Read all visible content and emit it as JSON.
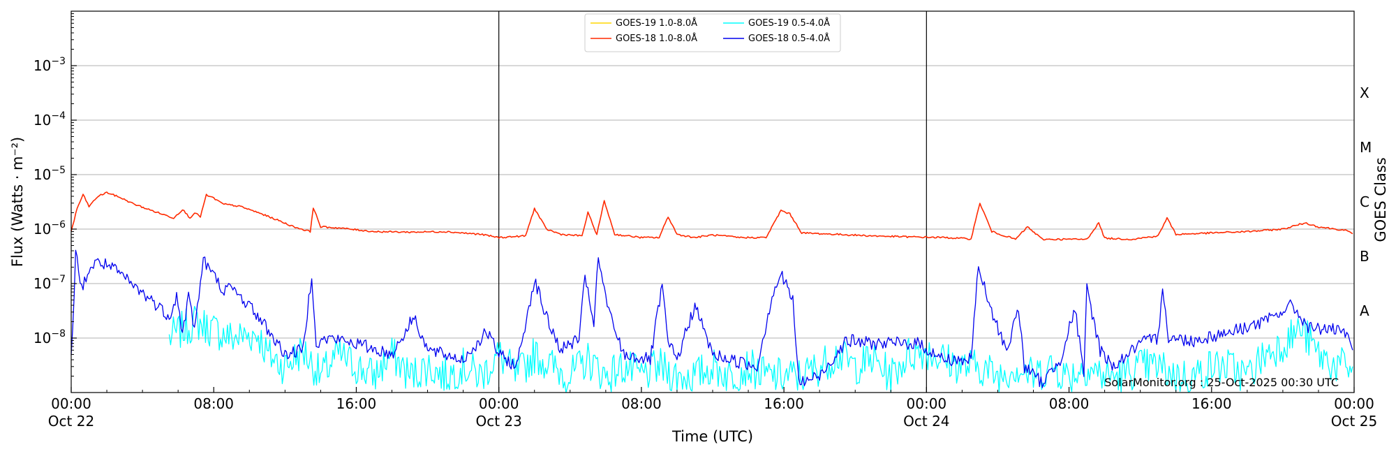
{
  "chart_data": {
    "type": "line",
    "xlabel": "Time (UTC)",
    "ylabel": "Flux (Watts · m⁻²)",
    "y2label": "GOES Class",
    "y_scale": "log",
    "ylim": [
      1e-09,
      0.01
    ],
    "xlim": [
      "2025-10-22 00:00",
      "2025-10-25 00:00"
    ],
    "grid": "horizontal at decades",
    "legend_position": "top-center",
    "x_ticks": [
      {
        "t": "2025-10-22 00:00",
        "line1": "00:00",
        "line2": "Oct 22"
      },
      {
        "t": "2025-10-22 08:00",
        "line1": "08:00",
        "line2": ""
      },
      {
        "t": "2025-10-22 16:00",
        "line1": "16:00",
        "line2": ""
      },
      {
        "t": "2025-10-23 00:00",
        "line1": "00:00",
        "line2": "Oct 23"
      },
      {
        "t": "2025-10-23 08:00",
        "line1": "08:00",
        "line2": ""
      },
      {
        "t": "2025-10-23 16:00",
        "line1": "16:00",
        "line2": ""
      },
      {
        "t": "2025-10-24 00:00",
        "line1": "00:00",
        "line2": "Oct 24"
      },
      {
        "t": "2025-10-24 08:00",
        "line1": "08:00",
        "line2": ""
      },
      {
        "t": "2025-10-24 16:00",
        "line1": "16:00",
        "line2": ""
      },
      {
        "t": "2025-10-25 00:00",
        "line1": "00:00",
        "line2": "Oct 25"
      }
    ],
    "y_ticks": [
      {
        "value": 1e-08,
        "label": "10",
        "exp": "−8"
      },
      {
        "value": 1e-07,
        "label": "10",
        "exp": "−7"
      },
      {
        "value": 1e-06,
        "label": "10",
        "exp": "−6"
      },
      {
        "value": 1e-05,
        "label": "10",
        "exp": "−5"
      },
      {
        "value": 0.0001,
        "label": "10",
        "exp": "−4"
      },
      {
        "value": 0.001,
        "label": "10",
        "exp": "−3"
      }
    ],
    "class_labels": [
      {
        "label": "A",
        "lo": 1e-08,
        "hi": 1e-07
      },
      {
        "label": "B",
        "lo": 1e-07,
        "hi": 1e-06
      },
      {
        "label": "C",
        "lo": 1e-06,
        "hi": 1e-05
      },
      {
        "label": "M",
        "lo": 1e-05,
        "hi": 0.0001
      },
      {
        "label": "X",
        "lo": 0.0001,
        "hi": 0.001
      }
    ],
    "day_boundaries": [
      "2025-10-23 00:00",
      "2025-10-24 00:00"
    ],
    "legend": [
      {
        "name": "GOES-19 1.0-8.0Å",
        "color": "#ffd700"
      },
      {
        "name": "GOES-19 0.5-4.0Å",
        "color": "#00ffff"
      },
      {
        "name": "GOES-18 1.0-8.0Å",
        "color": "#ff2a00"
      },
      {
        "name": "GOES-18 0.5-4.0Å",
        "color": "#0000ee"
      }
    ],
    "series": [
      {
        "name": "GOES-18 1.0-8.0Å",
        "color": "#ff2a00",
        "x": [
          "2025-10-22 00:00",
          "2025-10-22 00:20",
          "2025-10-22 00:40",
          "2025-10-22 01:00",
          "2025-10-22 01:30",
          "2025-10-22 02:00",
          "2025-10-22 02:45",
          "2025-10-22 03:30",
          "2025-10-22 04:30",
          "2025-10-22 05:45",
          "2025-10-22 06:15",
          "2025-10-22 06:40",
          "2025-10-22 06:55",
          "2025-10-22 07:15",
          "2025-10-22 07:35",
          "2025-10-22 08:00",
          "2025-10-22 08:30",
          "2025-10-22 09:30",
          "2025-10-22 10:30",
          "2025-10-22 11:30",
          "2025-10-22 12:30",
          "2025-10-22 13:25",
          "2025-10-22 13:35",
          "2025-10-22 14:00",
          "2025-10-22 15:00",
          "2025-10-22 17:00",
          "2025-10-22 19:00",
          "2025-10-22 21:00",
          "2025-10-22 23:00",
          "2025-10-23 00:00",
          "2025-10-23 01:30",
          "2025-10-23 02:00",
          "2025-10-23 02:40",
          "2025-10-23 03:30",
          "2025-10-23 04:40",
          "2025-10-23 05:00",
          "2025-10-23 05:30",
          "2025-10-23 05:55",
          "2025-10-23 06:30",
          "2025-10-23 08:00",
          "2025-10-23 09:00",
          "2025-10-23 09:30",
          "2025-10-23 10:00",
          "2025-10-23 11:00",
          "2025-10-23 12:00",
          "2025-10-23 13:30",
          "2025-10-23 15:00",
          "2025-10-23 15:50",
          "2025-10-23 16:20",
          "2025-10-23 17:00",
          "2025-10-23 19:00",
          "2025-10-23 21:00",
          "2025-10-23 23:00",
          "2025-10-24 01:00",
          "2025-10-24 02:30",
          "2025-10-24 03:00",
          "2025-10-24 03:40",
          "2025-10-24 05:00",
          "2025-10-24 05:40",
          "2025-10-24 06:30",
          "2025-10-24 08:00",
          "2025-10-24 09:00",
          "2025-10-24 09:40",
          "2025-10-24 10:00",
          "2025-10-24 11:30",
          "2025-10-24 13:00",
          "2025-10-24 13:30",
          "2025-10-24 14:00",
          "2025-10-24 16:00",
          "2025-10-24 18:00",
          "2025-10-24 20:00",
          "2025-10-24 21:15",
          "2025-10-24 22:00",
          "2025-10-24 23:30",
          "2025-10-24 23:55"
        ],
        "y": [
          9e-07,
          2.4e-06,
          4.3e-06,
          2.6e-06,
          4e-06,
          4.7e-06,
          3.8e-06,
          2.9e-06,
          2.2e-06,
          1.6e-06,
          2.3e-06,
          1.6e-06,
          2e-06,
          1.7e-06,
          4.2e-06,
          3.7e-06,
          2.9e-06,
          2.6e-06,
          2e-06,
          1.5e-06,
          1.1e-06,
          9e-07,
          2.5e-06,
          1.1e-06,
          1.05e-06,
          9e-07,
          8.8e-07,
          9e-07,
          8e-07,
          7e-07,
          7.5e-07,
          2.4e-06,
          1e-06,
          8e-07,
          7.5e-07,
          2e-06,
          8e-07,
          3.3e-06,
          8e-07,
          7e-07,
          7e-07,
          1.7e-06,
          8e-07,
          7e-07,
          7.8e-07,
          7e-07,
          7e-07,
          2.2e-06,
          1.9e-06,
          8.5e-07,
          8e-07,
          7.5e-07,
          7.2e-07,
          7e-07,
          6.6e-07,
          3e-06,
          9e-07,
          6.5e-07,
          1.1e-06,
          6.5e-07,
          6.5e-07,
          6.5e-07,
          1.3e-06,
          6.8e-07,
          6.5e-07,
          7.5e-07,
          1.6e-06,
          8e-07,
          8.5e-07,
          9e-07,
          1e-06,
          1.3e-06,
          1.1e-06,
          9.5e-07,
          8.2e-07
        ]
      },
      {
        "name": "GOES-18 0.5-4.0Å",
        "color": "#0000ee",
        "x": [
          "2025-10-22 00:00",
          "2025-10-22 00:15",
          "2025-10-22 00:35",
          "2025-10-22 01:00",
          "2025-10-22 01:30",
          "2025-10-22 02:00",
          "2025-10-22 02:45",
          "2025-10-22 03:30",
          "2025-10-22 04:30",
          "2025-10-22 05:30",
          "2025-10-22 05:55",
          "2025-10-22 06:15",
          "2025-10-22 06:35",
          "2025-10-22 06:55",
          "2025-10-22 07:25",
          "2025-10-22 08:00",
          "2025-10-22 08:30",
          "2025-10-22 09:00",
          "2025-10-22 10:00",
          "2025-10-22 11:00",
          "2025-10-22 12:00",
          "2025-10-22 13:00",
          "2025-10-22 13:30",
          "2025-10-22 13:45",
          "2025-10-22 14:30",
          "2025-10-22 16:00",
          "2025-10-22 18:00",
          "2025-10-22 19:15",
          "2025-10-22 20:00",
          "2025-10-22 22:00",
          "2025-10-22 23:20",
          "2025-10-23 00:00",
          "2025-10-23 01:00",
          "2025-10-23 02:00",
          "2025-10-23 02:45",
          "2025-10-23 03:30",
          "2025-10-23 04:30",
          "2025-10-23 04:50",
          "2025-10-23 05:20",
          "2025-10-23 05:35",
          "2025-10-23 06:10",
          "2025-10-23 07:00",
          "2025-10-23 08:30",
          "2025-10-23 09:10",
          "2025-10-23 09:30",
          "2025-10-23 10:00",
          "2025-10-23 11:00",
          "2025-10-23 12:00",
          "2025-10-23 13:00",
          "2025-10-23 14:30",
          "2025-10-23 15:20",
          "2025-10-23 15:50",
          "2025-10-23 16:30",
          "2025-10-23 16:50",
          "2025-10-23 18:00",
          "2025-10-23 19:30",
          "2025-10-23 21:00",
          "2025-10-23 22:30",
          "2025-10-23 23:30",
          "2025-10-24 01:00",
          "2025-10-24 02:30",
          "2025-10-24 02:55",
          "2025-10-24 03:30",
          "2025-10-24 04:30",
          "2025-10-24 05:10",
          "2025-10-24 05:30",
          "2025-10-24 06:30",
          "2025-10-24 07:30",
          "2025-10-24 08:20",
          "2025-10-24 08:50",
          "2025-10-24 09:00",
          "2025-10-24 09:45",
          "2025-10-24 10:30",
          "2025-10-24 12:00",
          "2025-10-24 13:00",
          "2025-10-24 13:15",
          "2025-10-24 13:35",
          "2025-10-24 15:00",
          "2025-10-24 17:00",
          "2025-10-24 19:00",
          "2025-10-24 20:30",
          "2025-10-24 21:30",
          "2025-10-24 22:30",
          "2025-10-24 23:30",
          "2025-10-24 23:55"
        ],
        "y": [
          4e-09,
          3.6e-07,
          8e-08,
          1.8e-07,
          2.5e-07,
          2.2e-07,
          1.5e-07,
          9e-08,
          5e-08,
          2.5e-08,
          6e-08,
          1.2e-08,
          6e-08,
          1.5e-08,
          2.7e-07,
          1.4e-07,
          8e-08,
          8e-08,
          4e-08,
          1.5e-08,
          5e-09,
          6e-09,
          1.5e-07,
          8e-09,
          1e-08,
          8e-09,
          5e-09,
          2.5e-08,
          6e-09,
          4e-09,
          1.3e-08,
          5e-09,
          3e-09,
          1.2e-07,
          2e-08,
          6e-09,
          1e-08,
          1.2e-07,
          2e-08,
          2.8e-07,
          3e-08,
          5e-09,
          4e-09,
          9e-08,
          8e-09,
          4e-09,
          4e-08,
          5e-09,
          4e-09,
          3e-09,
          6e-08,
          1.5e-07,
          5e-08,
          1.5e-09,
          2e-09,
          9e-09,
          8e-09,
          8e-09,
          8e-09,
          4e-09,
          4e-09,
          2.2e-07,
          4e-08,
          6e-09,
          3.5e-08,
          3e-09,
          1.5e-09,
          4e-09,
          3.5e-08,
          2e-09,
          8e-08,
          6e-09,
          3e-09,
          8e-09,
          1e-08,
          1e-07,
          1e-08,
          9e-09,
          1.3e-08,
          2e-08,
          4e-08,
          1.5e-08,
          1.5e-08,
          1.2e-08,
          6e-09
        ]
      },
      {
        "name": "GOES-19 0.5-4.0Å",
        "color": "#00ffff",
        "x": [
          "2025-10-22 05:30",
          "2025-10-22 07:00",
          "2025-10-22 09:00",
          "2025-10-22 10:30",
          "2025-10-22 11:00",
          "2025-10-22 12:00",
          "2025-10-22 13:00",
          "2025-10-22 14:00",
          "2025-10-22 15:00",
          "2025-10-22 16:00",
          "2025-10-22 17:00",
          "2025-10-22 18:00",
          "2025-10-22 19:00",
          "2025-10-22 20:00",
          "2025-10-22 21:00",
          "2025-10-22 22:00",
          "2025-10-22 23:00",
          "2025-10-23 00:00",
          "2025-10-23 01:00",
          "2025-10-23 02:00",
          "2025-10-23 03:00",
          "2025-10-23 04:00",
          "2025-10-23 05:00",
          "2025-10-23 06:00",
          "2025-10-23 07:00",
          "2025-10-23 08:00",
          "2025-10-23 09:00",
          "2025-10-23 10:00",
          "2025-10-23 11:00",
          "2025-10-23 12:00",
          "2025-10-23 13:00",
          "2025-10-23 14:00",
          "2025-10-23 15:00",
          "2025-10-23 16:00",
          "2025-10-23 17:00",
          "2025-10-23 18:00",
          "2025-10-23 19:00",
          "2025-10-23 20:00",
          "2025-10-23 21:00",
          "2025-10-23 22:00",
          "2025-10-23 23:00",
          "2025-10-24 00:00",
          "2025-10-24 01:00",
          "2025-10-24 02:00",
          "2025-10-24 03:00",
          "2025-10-24 04:00",
          "2025-10-24 05:00",
          "2025-10-24 06:00",
          "2025-10-24 07:00",
          "2025-10-24 08:00",
          "2025-10-24 09:00",
          "2025-10-24 10:00",
          "2025-10-24 11:00",
          "2025-10-24 12:00",
          "2025-10-24 13:00",
          "2025-10-24 14:00",
          "2025-10-24 15:00",
          "2025-10-24 16:00",
          "2025-10-24 17:00",
          "2025-10-24 18:00",
          "2025-10-24 19:00",
          "2025-10-24 20:00",
          "2025-10-24 21:00",
          "2025-10-24 22:00",
          "2025-10-24 23:00",
          "2025-10-24 23:55"
        ],
        "y": [
          1e-08,
          2e-08,
          1e-08,
          1.2e-08,
          5e-09,
          3e-09,
          6e-09,
          2e-09,
          5e-09,
          3e-09,
          2e-09,
          5e-09,
          2e-09,
          3e-09,
          2e-09,
          3e-09,
          2e-09,
          5e-09,
          2e-09,
          5e-09,
          3e-09,
          2e-09,
          4e-09,
          2e-09,
          3e-09,
          2e-09,
          3e-09,
          2e-09,
          2e-09,
          3e-09,
          2e-09,
          3e-09,
          2e-09,
          2e-09,
          2e-09,
          3e-09,
          5e-09,
          3e-09,
          4e-09,
          2e-09,
          5e-09,
          6e-09,
          4e-09,
          3e-09,
          3e-09,
          2e-09,
          3e-09,
          2e-09,
          3e-09,
          2e-09,
          3e-09,
          2e-09,
          2e-09,
          3e-09,
          3e-09,
          2e-09,
          2e-09,
          3e-09,
          3e-09,
          2e-09,
          5e-09,
          8e-09,
          1.5e-08,
          5e-09,
          3e-09,
          3e-09
        ]
      }
    ],
    "annotation": "SolarMonitor.org : 25-Oct-2025 00:30 UTC"
  }
}
